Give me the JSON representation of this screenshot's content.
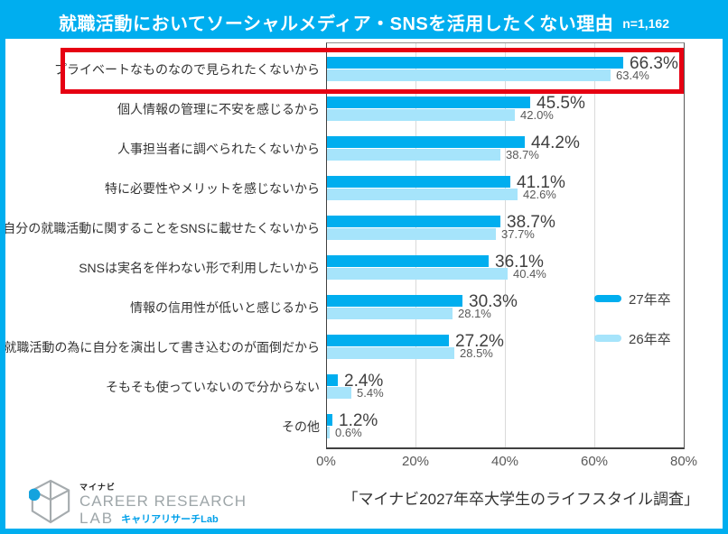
{
  "header": {
    "title": "就職活動においてソーシャルメディア・SNSを活用したくない理由",
    "sample_size": "n=1,162"
  },
  "chart_data": {
    "type": "bar",
    "orientation": "horizontal",
    "title": "就職活動においてソーシャルメディア・SNSを活用したくない理由",
    "sample_size": "n=1,162",
    "categories": [
      "プライベートなものなので見られたくないから",
      "個人情報の管理に不安を感じるから",
      "人事担当者に調べられたくないから",
      "特に必要性やメリットを感じないから",
      "自分の就職活動に関することをSNSに載せたくないから",
      "SNSは実名を伴わない形で利用したいから",
      "情報の信用性が低いと感じるから",
      "就職活動の為に自分を演出して書き込むのが面倒だから",
      "そもそも使っていないので分からない",
      "その他"
    ],
    "series": [
      {
        "name": "27年卒",
        "color": "#00AEEF",
        "values": [
          66.3,
          45.5,
          44.2,
          41.1,
          38.7,
          36.1,
          30.3,
          27.2,
          2.4,
          1.2
        ]
      },
      {
        "name": "26年卒",
        "color": "#A6E4FB",
        "values": [
          63.4,
          42.0,
          38.7,
          42.6,
          37.7,
          40.4,
          28.1,
          28.5,
          5.4,
          0.6
        ]
      }
    ],
    "value_suffix": "%",
    "xlim": [
      0,
      80
    ],
    "x_ticks": [
      "0%",
      "20%",
      "40%",
      "60%",
      "80%"
    ],
    "grid": true,
    "legend_position": "inside-right",
    "highlight": {
      "category_index": 0,
      "color": "#E60012"
    }
  },
  "legend": {
    "items": [
      {
        "label": "27年卒",
        "color": "#00AEEF"
      },
      {
        "label": "26年卒",
        "color": "#A6E4FB"
      }
    ]
  },
  "footer": {
    "source": "「マイナビ2027年卒大学生のライフスタイル調査」",
    "logo": {
      "icon": "cube-wireframe-icon",
      "brand_jp": "マイナビ",
      "line1": "CAREER RESEARCH",
      "line2": "LAB",
      "sub": "キャリアリサーチLab"
    }
  },
  "colors": {
    "accent_cyan": "#00AEEF",
    "bar_27": "#00AEEF",
    "bar_26": "#A6E4FB",
    "highlight_red": "#E60012",
    "logo_blue": "#00A0E9",
    "title_text": "#FFFFFF"
  }
}
